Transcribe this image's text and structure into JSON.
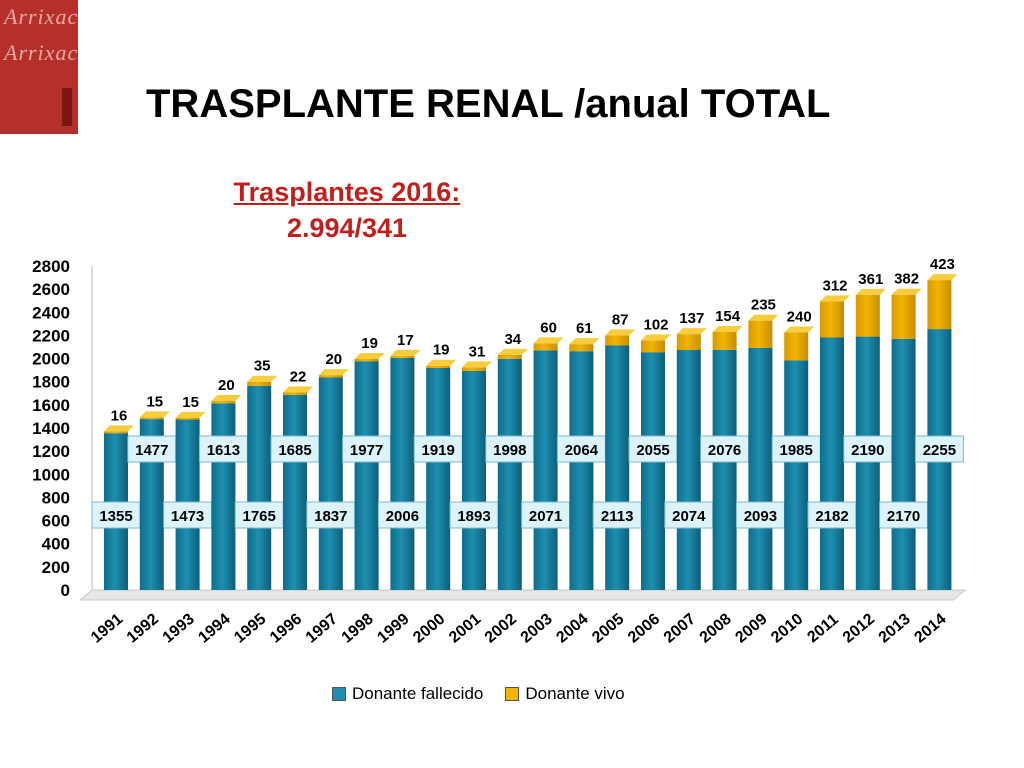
{
  "header": {
    "logo_text": "Arrixaca",
    "title": "TRASPLANTE RENAL /anual TOTAL",
    "subtitle_line1": "Trasplantes 2016:",
    "subtitle_line2": "2.994/341"
  },
  "colors": {
    "fallecido": "#1f8fb0",
    "vivo": "#f2b400",
    "logo": "#b5302a",
    "subtitle": "#c0201c"
  },
  "chart_data": {
    "type": "bar",
    "stacked": true,
    "title": "TRASPLANTE RENAL /anual TOTAL",
    "categories": [
      "1991",
      "1992",
      "1993",
      "1994",
      "1995",
      "1996",
      "1997",
      "1998",
      "1999",
      "2000",
      "2001",
      "2002",
      "2003",
      "2004",
      "2005",
      "2006",
      "2007",
      "2008",
      "2009",
      "2010",
      "2011",
      "2012",
      "2013",
      "2014"
    ],
    "series": [
      {
        "name": "Donante fallecido",
        "values": [
          1355,
          1477,
          1473,
          1613,
          1765,
          1685,
          1837,
          1977,
          2006,
          1919,
          1893,
          1998,
          2071,
          2064,
          2113,
          2055,
          2074,
          2076,
          2093,
          1985,
          2182,
          2190,
          2170,
          2255
        ]
      },
      {
        "name": "Donante vivo",
        "values": [
          16,
          15,
          15,
          20,
          35,
          22,
          20,
          19,
          17,
          19,
          31,
          34,
          60,
          61,
          87,
          102,
          137,
          154,
          235,
          240,
          312,
          361,
          382,
          423
        ]
      }
    ],
    "yticks": [
      0,
      200,
      400,
      600,
      800,
      1000,
      1200,
      1400,
      1600,
      1800,
      2000,
      2200,
      2400,
      2600,
      2800
    ],
    "ylim": [
      0,
      2800
    ],
    "legend_position": "bottom"
  }
}
